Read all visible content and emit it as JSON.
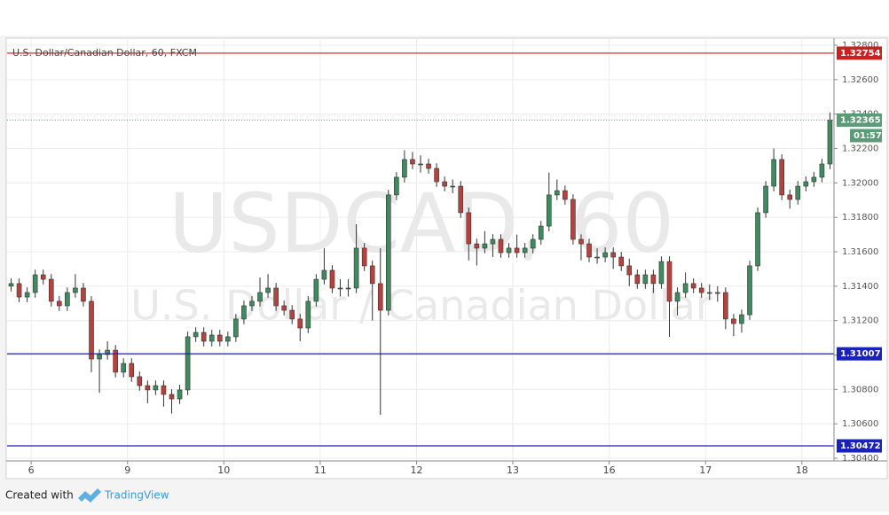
{
  "chart_data": {
    "type": "candlestick",
    "title": "U.S. Dollar/Canadian Dollar, 60, FXCM",
    "watermark": "USDCAD, 60",
    "watermark_subtitle": "U.S. Dollar / Canadian Dollar",
    "up_color": "#3d8b5e",
    "down_color": "#b8403d",
    "grid": true,
    "xlim": [
      0,
      206
    ],
    "ylim": [
      1.304,
      1.32831
    ],
    "xticks": [
      6,
      {
        "value": 30,
        "label": "9"
      },
      {
        "value": 54,
        "label": "10"
      },
      {
        "value": 78,
        "label": "11"
      },
      {
        "value": 102,
        "label": "12"
      },
      {
        "value": 126,
        "label": "13"
      },
      {
        "value": 150,
        "label": "16"
      },
      {
        "value": 174,
        "label": "17"
      },
      {
        "value": 198,
        "label": "18"
      }
    ],
    "yticks": [
      {
        "value": 1.328,
        "label": "1.32800"
      },
      {
        "value": 1.326,
        "label": "1.32600"
      },
      {
        "value": 1.324,
        "label": "1.32400"
      },
      {
        "value": 1.322,
        "label": "1.32200"
      },
      {
        "value": 1.32,
        "label": "1.32000"
      },
      {
        "value": 1.318,
        "label": "1.31800"
      },
      {
        "value": 1.316,
        "label": "1.31600"
      },
      {
        "value": 1.314,
        "label": "1.31400"
      },
      {
        "value": 1.312,
        "label": "1.31200"
      },
      {
        "value": 1.31,
        "label": "1.31000"
      },
      {
        "value": 1.308,
        "label": "1.30800"
      },
      {
        "value": 1.306,
        "label": "1.30600"
      },
      {
        "value": 1.304,
        "label": "1.30400"
      }
    ],
    "levels": [
      {
        "value": 1.32754,
        "color": "#cc1f1f"
      },
      {
        "value": 1.31007,
        "color": "#1a23b8"
      },
      {
        "value": 1.30472,
        "color": "#1a23b8"
      }
    ],
    "last_price": 1.32365,
    "last_price_color": "#5c9b78",
    "countdown": "01:57",
    "x": [
      1,
      3,
      5,
      7,
      9,
      11,
      13,
      15,
      17,
      19,
      21,
      23,
      25,
      27,
      29,
      31,
      33,
      35,
      37,
      39,
      41,
      43,
      45,
      47,
      49,
      51,
      53,
      55,
      57,
      59,
      61,
      63,
      65,
      67,
      69,
      71,
      73,
      75,
      77,
      79,
      81,
      83,
      85,
      87,
      89,
      91,
      93,
      95,
      97,
      99,
      101,
      103,
      105,
      107,
      109,
      111,
      113,
      115,
      117,
      119,
      121,
      123,
      125,
      127,
      129,
      131,
      133,
      135,
      137,
      139,
      141,
      143,
      145,
      147,
      149,
      151,
      153,
      155,
      157,
      159,
      161,
      163,
      165,
      167,
      169,
      171,
      173,
      175,
      177,
      179,
      181,
      183,
      185,
      187,
      189,
      191,
      193,
      195,
      197,
      199,
      201,
      203,
      205
    ],
    "open": [
      1.314,
      1.31415,
      1.31337,
      1.31363,
      1.31466,
      1.3144,
      1.31312,
      1.31286,
      1.31363,
      1.31389,
      1.31312,
      1.30977,
      1.31003,
      1.31028,
      1.309,
      1.30951,
      1.30874,
      1.30822,
      1.30797,
      1.30822,
      1.30771,
      1.30745,
      1.30797,
      1.31106,
      1.31131,
      1.3108,
      1.31116,
      1.3108,
      1.31106,
      1.31209,
      1.31286,
      1.31312,
      1.31363,
      1.31389,
      1.31286,
      1.3126,
      1.31209,
      1.31157,
      1.31312,
      1.3144,
      1.31492,
      1.31389,
      1.31389,
      1.31389,
      1.31621,
      1.31518,
      1.31415,
      1.3126,
      1.3193,
      1.32033,
      1.32136,
      1.3211,
      1.3211,
      1.32084,
      1.32007,
      1.31981,
      1.31981,
      1.31827,
      1.31646,
      1.31621,
      1.31646,
      1.31672,
      1.31595,
      1.31621,
      1.31595,
      1.31621,
      1.31672,
      1.31749,
      1.3193,
      1.31955,
      1.31904,
      1.31672,
      1.31646,
      1.31569,
      1.31569,
      1.31595,
      1.31569,
      1.31518,
      1.31466,
      1.31415,
      1.31466,
      1.31415,
      1.31543,
      1.31312,
      1.31363,
      1.31415,
      1.31389,
      1.31363,
      1.31363,
      1.31363,
      1.31209,
      1.31183,
      1.31234,
      1.31518,
      1.31827,
      1.31981,
      1.32136,
      1.3193,
      1.31904,
      1.31981,
      1.32007,
      1.32033,
      1.3211
    ],
    "high": [
      1.31445,
      1.31445,
      1.31393,
      1.31496,
      1.31496,
      1.3147,
      1.31342,
      1.31393,
      1.3147,
      1.31419,
      1.31342,
      1.31033,
      1.3108,
      1.31058,
      1.30981,
      1.30981,
      1.30904,
      1.30852,
      1.30852,
      1.30852,
      1.30801,
      1.30827,
      1.31136,
      1.31161,
      1.31161,
      1.31146,
      1.31146,
      1.31136,
      1.31239,
      1.31316,
      1.31342,
      1.3145,
      1.3147,
      1.31419,
      1.31316,
      1.3129,
      1.31239,
      1.31342,
      1.3147,
      1.3162,
      1.31522,
      1.3144,
      1.3144,
      1.3176,
      1.31651,
      1.31548,
      1.3162,
      1.3196,
      1.32063,
      1.3219,
      1.3218,
      1.3216,
      1.3214,
      1.32114,
      1.32037,
      1.3202,
      1.32011,
      1.31857,
      1.31676,
      1.3172,
      1.31702,
      1.31702,
      1.31651,
      1.317,
      1.31651,
      1.31702,
      1.31779,
      1.3206,
      1.3202,
      1.31985,
      1.31934,
      1.31702,
      1.31676,
      1.3162,
      1.31625,
      1.31625,
      1.31599,
      1.3156,
      1.31496,
      1.31496,
      1.31496,
      1.31573,
      1.31573,
      1.31393,
      1.3148,
      1.31445,
      1.31419,
      1.3141,
      1.314,
      1.31393,
      1.31239,
      1.31264,
      1.31548,
      1.31857,
      1.32011,
      1.322,
      1.32166,
      1.3196,
      1.32011,
      1.32037,
      1.32063,
      1.3214,
      1.32409
    ],
    "low": [
      1.3137,
      1.31307,
      1.31307,
      1.31333,
      1.3141,
      1.31282,
      1.31256,
      1.31256,
      1.31333,
      1.31282,
      1.309,
      1.3078,
      1.30973,
      1.3087,
      1.3087,
      1.30844,
      1.30792,
      1.3072,
      1.30767,
      1.307,
      1.3066,
      1.30715,
      1.30767,
      1.31076,
      1.3105,
      1.3105,
      1.3105,
      1.3105,
      1.31076,
      1.31179,
      1.31256,
      1.31282,
      1.31333,
      1.31256,
      1.3123,
      1.31179,
      1.3108,
      1.31127,
      1.31282,
      1.3141,
      1.31359,
      1.3134,
      1.3134,
      1.31359,
      1.31488,
      1.312,
      1.30653,
      1.3123,
      1.319,
      1.32003,
      1.3208,
      1.3206,
      1.32054,
      1.31977,
      1.31951,
      1.3194,
      1.31797,
      1.3155,
      1.3152,
      1.31591,
      1.3157,
      1.31565,
      1.31565,
      1.31565,
      1.31565,
      1.31591,
      1.31642,
      1.31719,
      1.319,
      1.31874,
      1.31642,
      1.3155,
      1.31539,
      1.3153,
      1.31539,
      1.315,
      1.31488,
      1.314,
      1.31385,
      1.31385,
      1.3136,
      1.31385,
      1.31106,
      1.3123,
      1.31333,
      1.31359,
      1.31333,
      1.3132,
      1.3131,
      1.3115,
      1.3111,
      1.3113,
      1.31204,
      1.31488,
      1.31797,
      1.31951,
      1.319,
      1.3185,
      1.31874,
      1.31951,
      1.31977,
      1.32003,
      1.3208
    ],
    "close": [
      1.31415,
      1.31337,
      1.31363,
      1.31466,
      1.3144,
      1.31312,
      1.31286,
      1.31363,
      1.31389,
      1.31312,
      1.30977,
      1.31003,
      1.31028,
      1.309,
      1.30951,
      1.30874,
      1.30822,
      1.30797,
      1.30822,
      1.30771,
      1.30745,
      1.30797,
      1.31106,
      1.31131,
      1.3108,
      1.31116,
      1.3108,
      1.31106,
      1.31209,
      1.31286,
      1.31312,
      1.31363,
      1.31389,
      1.31286,
      1.3126,
      1.31209,
      1.31157,
      1.31312,
      1.3144,
      1.31492,
      1.31389,
      1.31389,
      1.31389,
      1.31621,
      1.31518,
      1.31415,
      1.3126,
      1.3193,
      1.32033,
      1.32136,
      1.3211,
      1.3211,
      1.32084,
      1.32007,
      1.31981,
      1.31981,
      1.31827,
      1.31646,
      1.31621,
      1.31646,
      1.31672,
      1.31595,
      1.31621,
      1.31595,
      1.31621,
      1.31672,
      1.31749,
      1.3193,
      1.31955,
      1.31904,
      1.31672,
      1.31646,
      1.31569,
      1.31569,
      1.31595,
      1.31569,
      1.31518,
      1.31466,
      1.31415,
      1.31466,
      1.31415,
      1.31543,
      1.31312,
      1.31363,
      1.31415,
      1.31389,
      1.31363,
      1.31363,
      1.31363,
      1.31209,
      1.31183,
      1.31234,
      1.31518,
      1.31827,
      1.31981,
      1.32136,
      1.3193,
      1.31904,
      1.31981,
      1.32007,
      1.32033,
      1.3211,
      1.32365
    ]
  },
  "footer": {
    "created_with": "Created with",
    "brand": "TradingView"
  }
}
